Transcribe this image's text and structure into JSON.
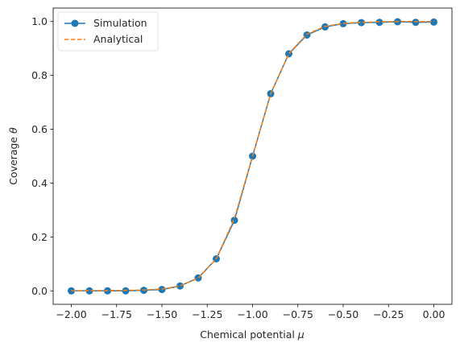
{
  "chart_data": {
    "type": "line",
    "xlabel": "Chemical potential μ",
    "xlabel_parts": {
      "text": "Chemical potential ",
      "symbol": "μ"
    },
    "ylabel": "Coverage θ",
    "ylabel_parts": {
      "text": "Coverage ",
      "symbol": "θ"
    },
    "xlim": [
      -2.1,
      0.1
    ],
    "ylim": [
      -0.05,
      1.05
    ],
    "xticks": [
      -2.0,
      -1.75,
      -1.5,
      -1.25,
      -1.0,
      -0.75,
      -0.5,
      -0.25,
      0.0
    ],
    "xtick_labels": [
      "−2.00",
      "−1.75",
      "−1.50",
      "−1.25",
      "−1.00",
      "−0.75",
      "−0.50",
      "−0.25",
      "0.00"
    ],
    "yticks": [
      0.0,
      0.2,
      0.4,
      0.6,
      0.8,
      1.0
    ],
    "ytick_labels": [
      "0.0",
      "0.2",
      "0.4",
      "0.6",
      "0.8",
      "1.0"
    ],
    "grid": false,
    "legend_position": "top-left",
    "x": [
      -2.0,
      -1.9,
      -1.8,
      -1.7,
      -1.6,
      -1.5,
      -1.4,
      -1.3,
      -1.2,
      -1.1,
      -1.0,
      -0.9,
      -0.8,
      -0.7,
      -0.6,
      -0.5,
      -0.4,
      -0.3,
      -0.2,
      -0.1,
      0.0
    ],
    "series": [
      {
        "name": "Simulation",
        "color": "#1f77b4",
        "style": "solid-with-circle-markers",
        "values": [
          0.0,
          0.0,
          0.0,
          0.0,
          0.002,
          0.005,
          0.018,
          0.048,
          0.119,
          0.262,
          0.5,
          0.732,
          0.88,
          0.95,
          0.98,
          0.992,
          0.996,
          0.997,
          0.999,
          0.997,
          0.998
        ]
      },
      {
        "name": "Analytical",
        "color": "#ff7f0e",
        "style": "dashed",
        "values": [
          0.0,
          0.001,
          0.001,
          0.002,
          0.003,
          0.007,
          0.018,
          0.047,
          0.119,
          0.269,
          0.5,
          0.731,
          0.881,
          0.953,
          0.982,
          0.993,
          0.997,
          0.999,
          1.0,
          1.0,
          1.0
        ]
      }
    ]
  }
}
